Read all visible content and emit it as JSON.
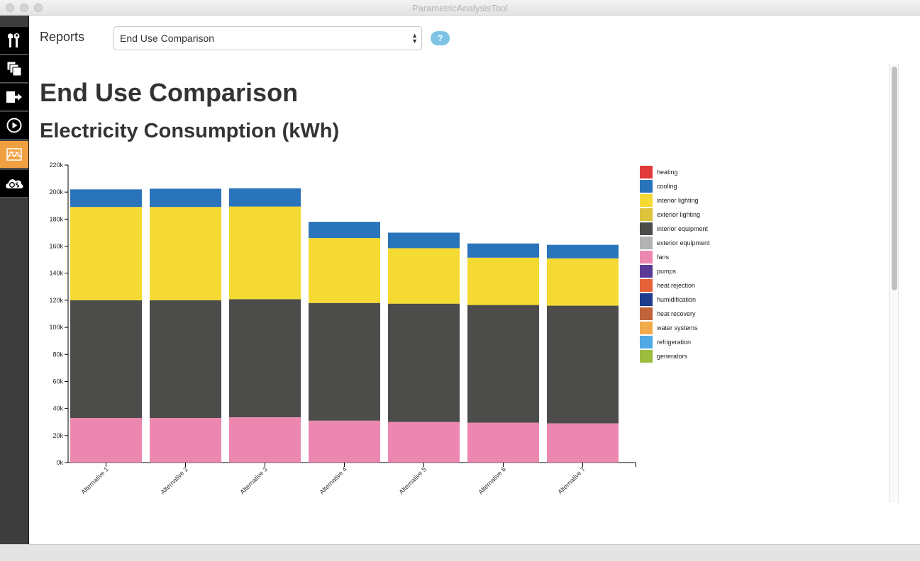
{
  "window": {
    "title": "ParametricAnalysisTool"
  },
  "sidebar": {
    "items": [
      {
        "name": "measures-tools-icon"
      },
      {
        "name": "design-alternatives-icon"
      },
      {
        "name": "output-export-icon"
      },
      {
        "name": "run-simulation-icon"
      },
      {
        "name": "reports-icon",
        "active": true
      },
      {
        "name": "cloud-server-icon"
      }
    ]
  },
  "header": {
    "reports_label": "Reports",
    "report_select_value": "End Use Comparison",
    "help_label": "?"
  },
  "report": {
    "title": "End Use Comparison",
    "section_title": "Electricity Consumption (kWh)"
  },
  "chart_data": {
    "type": "bar",
    "stacked": true,
    "categories": [
      "Alternative 1",
      "Alternative 2",
      "Alternative 3",
      "Alternative 4",
      "Alternative 5",
      "Alternative 6",
      "Alternative 7"
    ],
    "ylim": [
      0,
      220000
    ],
    "yticks": [
      "0k",
      "20k",
      "40k",
      "60k",
      "80k",
      "100k",
      "120k",
      "140k",
      "160k",
      "180k",
      "200k",
      "220k"
    ],
    "series": [
      {
        "name": "fans",
        "color": "#ec88b0",
        "values": [
          33000,
          33000,
          33500,
          31000,
          30000,
          29500,
          29000
        ]
      },
      {
        "name": "interior equipment",
        "color": "#4c4c4a",
        "values": [
          87000,
          87000,
          87300,
          87000,
          87500,
          87000,
          87000
        ]
      },
      {
        "name": "interior lighting",
        "color": "#f5da33",
        "values": [
          69000,
          69000,
          68500,
          48000,
          41000,
          35000,
          35000
        ]
      },
      {
        "name": "cooling",
        "color": "#2a74bb",
        "values": [
          13000,
          13500,
          13500,
          12000,
          11500,
          10500,
          10000
        ]
      }
    ],
    "legend": [
      {
        "label": "heating",
        "color": "#e03a3a"
      },
      {
        "label": "cooling",
        "color": "#2a74bb"
      },
      {
        "label": "interior lighting",
        "color": "#f5da33"
      },
      {
        "label": "exterior lighting",
        "color": "#dcc43a"
      },
      {
        "label": "interior equipment",
        "color": "#4c4c4a"
      },
      {
        "label": "exterior equipment",
        "color": "#b3b3b3"
      },
      {
        "label": "fans",
        "color": "#ec88b0"
      },
      {
        "label": "pumps",
        "color": "#5b3a96"
      },
      {
        "label": "heat rejection",
        "color": "#e6633a"
      },
      {
        "label": "humidification",
        "color": "#1f3c8e"
      },
      {
        "label": "heat recovery",
        "color": "#c0623a"
      },
      {
        "label": "water systems",
        "color": "#f2ab4a"
      },
      {
        "label": "refrigeration",
        "color": "#4fa9e4"
      },
      {
        "label": "generators",
        "color": "#9bbc3c"
      }
    ],
    "legend_position": "right"
  }
}
